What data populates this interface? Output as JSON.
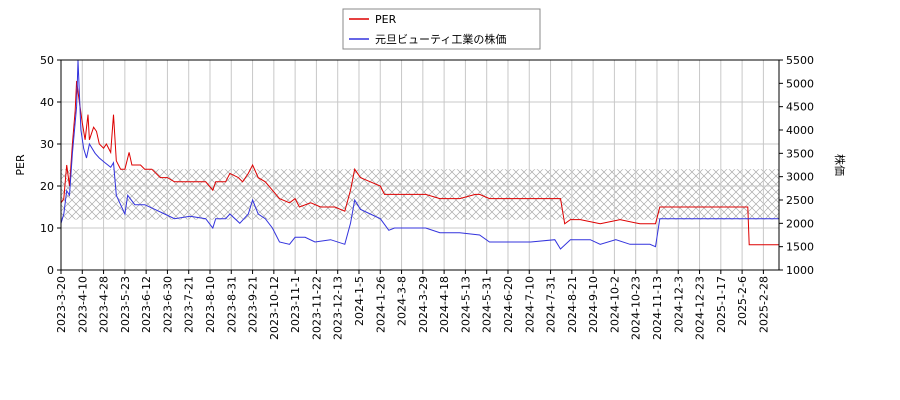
{
  "chart_data": {
    "type": "line",
    "y_label": "PER",
    "y2_label": "株価",
    "xlim": [
      0,
      506
    ],
    "xticks": [
      {
        "value": 0,
        "label": "2023-3-20"
      },
      {
        "value": 15,
        "label": "2023-4-10"
      },
      {
        "value": 30,
        "label": "2023-4-28"
      },
      {
        "value": 45,
        "label": "2023-5-23"
      },
      {
        "value": 60,
        "label": "2023-6-12"
      },
      {
        "value": 75,
        "label": "2023-6-30"
      },
      {
        "value": 90,
        "label": "2023-7-21"
      },
      {
        "value": 105,
        "label": "2023-8-10"
      },
      {
        "value": 120,
        "label": "2023-8-31"
      },
      {
        "value": 135,
        "label": "2023-9-21"
      },
      {
        "value": 150,
        "label": "2023-10-12"
      },
      {
        "value": 165,
        "label": "2023-11-1"
      },
      {
        "value": 180,
        "label": "2023-11-22"
      },
      {
        "value": 195,
        "label": "2023-12-13"
      },
      {
        "value": 210,
        "label": "2024-1-5"
      },
      {
        "value": 225,
        "label": "2024-1-26"
      },
      {
        "value": 240,
        "label": "2024-3-8"
      },
      {
        "value": 255,
        "label": "2024-3-29"
      },
      {
        "value": 270,
        "label": "2024-4-18"
      },
      {
        "value": 285,
        "label": "2024-5-13"
      },
      {
        "value": 300,
        "label": "2024-5-31"
      },
      {
        "value": 315,
        "label": "2024-6-20"
      },
      {
        "value": 330,
        "label": "2024-7-10"
      },
      {
        "value": 345,
        "label": "2024-7-31"
      },
      {
        "value": 360,
        "label": "2024-8-21"
      },
      {
        "value": 375,
        "label": "2024-9-10"
      },
      {
        "value": 390,
        "label": "2024-10-2"
      },
      {
        "value": 405,
        "label": "2024-10-23"
      },
      {
        "value": 420,
        "label": "2024-11-13"
      },
      {
        "value": 435,
        "label": "2024-12-3"
      },
      {
        "value": 450,
        "label": "2024-12-23"
      },
      {
        "value": 465,
        "label": "2025-1-17"
      },
      {
        "value": 480,
        "label": "2025-2-6"
      },
      {
        "value": 495,
        "label": "2025-2-28"
      }
    ],
    "ylim": [
      0,
      50
    ],
    "yticks": [
      0,
      10,
      20,
      30,
      40,
      50
    ],
    "y2lim": [
      1000,
      5500
    ],
    "y2ticks": [
      1000,
      1500,
      2000,
      2500,
      3000,
      3500,
      4000,
      4500,
      5000,
      5500
    ],
    "band": [
      12,
      24
    ],
    "grid": true,
    "legend": "top",
    "series": [
      {
        "name": "PER",
        "color": "#dd0000",
        "x": [
          0,
          2,
          4,
          6,
          8,
          10,
          11,
          13,
          15,
          17,
          19,
          20,
          23,
          25,
          27,
          30,
          32,
          35,
          37,
          39,
          42,
          45,
          48,
          50,
          56,
          59,
          64,
          70,
          75,
          80,
          87,
          94,
          102,
          107,
          109,
          116,
          119,
          125,
          128,
          132,
          135,
          139,
          144,
          149,
          154,
          161,
          165,
          168,
          176,
          183,
          193,
          200,
          204,
          207,
          211,
          218,
          225,
          228,
          235,
          246,
          257,
          267,
          281,
          292,
          295,
          302,
          317,
          331,
          341,
          352,
          355,
          359,
          366,
          380,
          394,
          408,
          419,
          422,
          450,
          484,
          485,
          506
        ],
        "values": [
          16,
          17,
          25,
          20,
          30,
          38,
          45,
          40,
          35,
          31,
          37,
          31,
          34,
          33,
          30,
          29,
          30,
          28,
          37,
          26,
          24,
          24,
          28,
          25,
          25,
          24,
          24,
          22,
          22,
          21,
          21,
          21,
          21,
          19,
          21,
          21,
          23,
          22,
          21,
          23,
          25,
          22,
          21,
          19,
          17,
          16,
          17,
          15,
          16,
          15,
          15,
          14,
          19,
          24,
          22,
          21,
          20,
          18,
          18,
          18,
          18,
          17,
          17,
          18,
          18,
          17,
          17,
          17,
          17,
          17,
          11,
          12,
          12,
          11,
          12,
          11,
          11,
          15,
          15,
          15,
          6,
          6
        ]
      },
      {
        "name": "元旦ビューティ工業の株価",
        "color": "#3333dd",
        "axis": "y2",
        "x": [
          0,
          2,
          4,
          6,
          8,
          11,
          12,
          14,
          16,
          18,
          20,
          24,
          27,
          31,
          35,
          37,
          39,
          42,
          45,
          47,
          52,
          59,
          66,
          73,
          80,
          91,
          102,
          107,
          109,
          116,
          119,
          126,
          132,
          135,
          139,
          144,
          149,
          154,
          161,
          165,
          172,
          179,
          190,
          200,
          204,
          207,
          211,
          218,
          225,
          231,
          235,
          246,
          257,
          267,
          281,
          295,
          302,
          317,
          331,
          348,
          352,
          359,
          373,
          380,
          391,
          401,
          415,
          419,
          422,
          506
        ],
        "values": [
          2000,
          2200,
          2700,
          2600,
          3500,
          4500,
          5500,
          4000,
          3600,
          3400,
          3700,
          3500,
          3400,
          3300,
          3200,
          3300,
          2600,
          2400,
          2200,
          2600,
          2400,
          2400,
          2300,
          2200,
          2100,
          2150,
          2100,
          1900,
          2100,
          2100,
          2200,
          2000,
          2200,
          2500,
          2200,
          2100,
          1900,
          1600,
          1550,
          1700,
          1700,
          1600,
          1650,
          1550,
          2000,
          2500,
          2300,
          2200,
          2100,
          1850,
          1900,
          1900,
          1900,
          1800,
          1800,
          1750,
          1600,
          1600,
          1600,
          1650,
          1450,
          1650,
          1650,
          1550,
          1650,
          1550,
          1550,
          1500,
          2100,
          2100
        ]
      }
    ]
  }
}
